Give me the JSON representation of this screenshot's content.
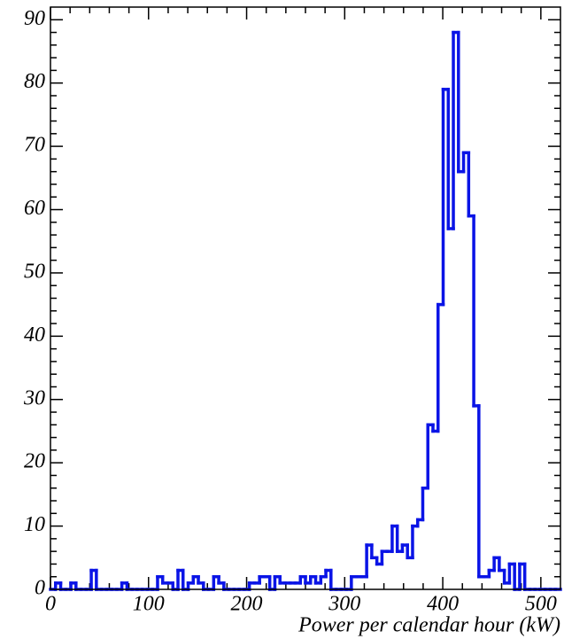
{
  "chart_data": {
    "type": "histogram",
    "xlabel": "Power per calendar hour (kW)",
    "bins": [
      0,
      5.2,
      10.4,
      15.6,
      20.8,
      26,
      31.2,
      36.4,
      41.6,
      46.8,
      52,
      57.2,
      62.4,
      67.6,
      72.8,
      78,
      83.2,
      88.4,
      93.6,
      98.8,
      104,
      109.2,
      114.4,
      119.6,
      124.8,
      130,
      135.2,
      140.4,
      145.6,
      150.8,
      156,
      161.2,
      166.4,
      171.6,
      176.8,
      182,
      187.2,
      192.4,
      197.6,
      202.8,
      208,
      213.2,
      218.4,
      223.6,
      228.8,
      234,
      239.2,
      244.4,
      249.6,
      254.8,
      260,
      265.2,
      270.4,
      275.6,
      280.8,
      286,
      291.2,
      296.4,
      301.6,
      306.8,
      312,
      317.2,
      322.4,
      327.6,
      332.8,
      338,
      343.2,
      348.4,
      353.6,
      358.8,
      364,
      369.2,
      374.4,
      379.6,
      384.8,
      390,
      395.2,
      400.4,
      405.6,
      410.8,
      416,
      421.2,
      426.4,
      431.6,
      436.8,
      442,
      447.2,
      452.4,
      457.6,
      462.8,
      468,
      473.2,
      478.4,
      483.6,
      488.8,
      494,
      499.2,
      504.4,
      509.6,
      514.8,
      520
    ],
    "values": [
      0,
      1,
      0,
      0,
      1,
      0,
      0,
      0,
      3,
      0,
      0,
      0,
      0,
      0,
      1,
      0,
      0,
      0,
      0,
      0,
      0,
      2,
      1,
      1,
      0,
      3,
      0,
      1,
      2,
      1,
      0,
      0,
      2,
      1,
      0,
      0,
      0,
      0,
      0,
      1,
      1,
      2,
      2,
      0,
      2,
      1,
      1,
      1,
      1,
      2,
      1,
      2,
      1,
      2,
      3,
      0,
      0,
      0,
      0,
      2,
      2,
      2,
      7,
      5,
      4,
      6,
      6,
      10,
      6,
      7,
      5,
      10,
      11,
      16,
      26,
      25,
      45,
      79,
      57,
      88,
      66,
      69,
      59,
      29,
      2,
      2,
      3,
      5,
      3,
      1,
      4,
      0,
      4,
      0,
      0,
      0,
      0,
      0,
      0,
      0
    ],
    "color": "#0a14e6",
    "xlim": [
      0,
      520
    ],
    "ylim": [
      0,
      92
    ],
    "xticks": [
      0,
      100,
      200,
      300,
      400,
      500
    ],
    "yticks": [
      0,
      10,
      20,
      30,
      40,
      50,
      60,
      70,
      80,
      90
    ]
  }
}
